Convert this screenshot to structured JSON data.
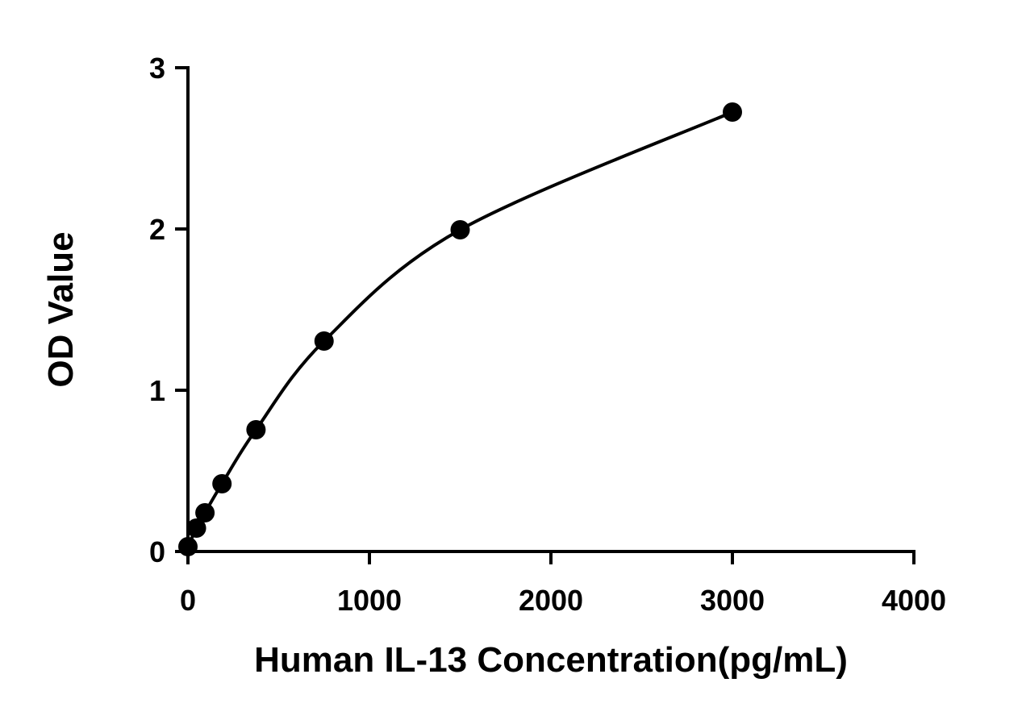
{
  "chart_data": {
    "type": "scatter",
    "x_label": "Human IL-13 Concentration(pg/mL)",
    "y_label": "OD Value",
    "x": [
      0,
      46.875,
      93.75,
      187.5,
      375,
      750,
      1500,
      3000
    ],
    "values": [
      0.03,
      0.145,
      0.24,
      0.42,
      0.755,
      1.305,
      1.995,
      2.725
    ],
    "color": "#000000",
    "fit_line": true,
    "xlim": [
      0,
      4000
    ],
    "xticks": [
      0,
      1000,
      2000,
      3000,
      4000
    ],
    "ylim": [
      0,
      3
    ],
    "yticks": [
      0,
      1,
      2,
      3
    ]
  }
}
